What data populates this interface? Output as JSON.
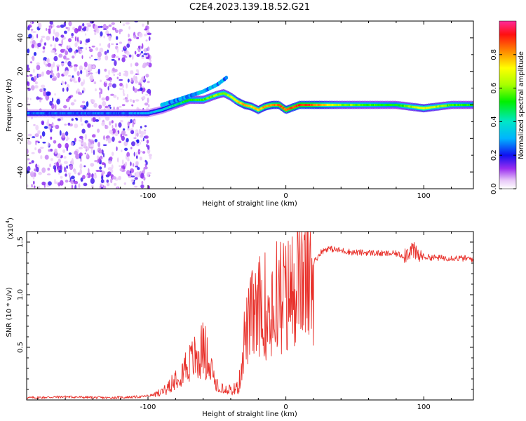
{
  "title": "C2E4.2023.139.18.52.G21",
  "chart_data": [
    {
      "type": "heatmap",
      "xlabel": "Height of straight line (km)",
      "ylabel": "Frequency (Hz)",
      "xlim": [
        -188,
        136
      ],
      "ylim": [
        -50,
        50
      ],
      "xticks": [
        -100,
        0,
        100
      ],
      "xtick_labels": [
        "-100",
        "0",
        "100"
      ],
      "yticks": [
        -40,
        -20,
        0,
        20,
        40
      ],
      "ytick_labels": [
        "-40",
        "-20",
        "0",
        "20",
        "40"
      ],
      "colorbar": {
        "label": "Normalized spectral amplitude",
        "range": [
          0,
          1
        ],
        "ticks": [
          0.0,
          0.2,
          0.4,
          0.6,
          0.8
        ],
        "tick_labels": [
          "0.0",
          "0.2",
          "0.4",
          "0.6",
          "0.8"
        ]
      },
      "ridge": {
        "x": [
          -188,
          -150,
          -120,
          -100,
          -90,
          -80,
          -70,
          -60,
          -50,
          -45,
          -40,
          -35,
          -30,
          -25,
          -20,
          -15,
          -10,
          -5,
          0,
          10,
          20,
          40,
          60,
          80,
          100,
          120,
          136
        ],
        "y": [
          -5,
          -5,
          -5,
          -5,
          -3,
          0,
          3,
          3,
          6,
          7,
          5,
          2,
          0,
          -1,
          -3,
          -1,
          0,
          0,
          -3,
          0,
          0,
          0,
          0,
          0,
          -2,
          0,
          0
        ],
        "amplitude": [
          0.25,
          0.25,
          0.25,
          0.3,
          0.35,
          0.45,
          0.5,
          0.55,
          0.6,
          0.6,
          0.65,
          0.75,
          0.8,
          0.75,
          0.75,
          0.8,
          0.8,
          0.85,
          0.85,
          0.9,
          0.85,
          0.6,
          0.55,
          0.5,
          0.7,
          0.55,
          0.5
        ]
      }
    },
    {
      "type": "line",
      "xlabel": "Height of straight line (km)",
      "ylabel": "SNR (10 * v/v)",
      "y_multiplier_label": "(x10",
      "y_multiplier_exponent": "4",
      "xlim": [
        -188,
        136
      ],
      "ylim": [
        0,
        1.6
      ],
      "xticks": [
        -100,
        0,
        100
      ],
      "xtick_labels": [
        "-100",
        "0",
        "100"
      ],
      "yticks": [
        0.5,
        1.0,
        1.5
      ],
      "ytick_labels": [
        "0.5",
        "1.0",
        "1.5"
      ],
      "color": "#e8302a",
      "series": [
        {
          "x": [
            -188,
            -160,
            -130,
            -105,
            -95,
            -90,
            -85,
            -80,
            -75,
            -70,
            -65,
            -62,
            -60,
            -58,
            -55,
            -50,
            -45,
            -40,
            -36,
            -34,
            -32,
            -30,
            -27,
            -25,
            -22,
            -20,
            -17,
            -15,
            -12,
            -10,
            -7,
            -5,
            -2,
            0,
            3,
            5,
            8,
            10,
            15,
            20,
            25,
            30,
            35,
            40,
            50,
            60,
            70,
            80,
            85,
            88,
            90,
            92,
            94,
            96,
            100,
            110,
            120,
            136
          ],
          "y": [
            0.02,
            0.03,
            0.02,
            0.03,
            0.05,
            0.08,
            0.14,
            0.22,
            0.3,
            0.35,
            0.42,
            0.47,
            0.5,
            0.45,
            0.3,
            0.15,
            0.12,
            0.1,
            0.11,
            0.15,
            0.35,
            0.6,
            0.7,
            0.8,
            0.85,
            0.9,
            0.88,
            0.92,
            0.95,
            0.98,
            1.0,
            1.0,
            1.02,
            0.98,
            1.05,
            1.08,
            1.1,
            1.12,
            1.18,
            1.3,
            1.4,
            1.44,
            1.43,
            1.42,
            1.4,
            1.4,
            1.39,
            1.39,
            1.37,
            1.4,
            1.42,
            1.44,
            1.38,
            1.37,
            1.36,
            1.35,
            1.35,
            1.34
          ]
        }
      ]
    }
  ]
}
